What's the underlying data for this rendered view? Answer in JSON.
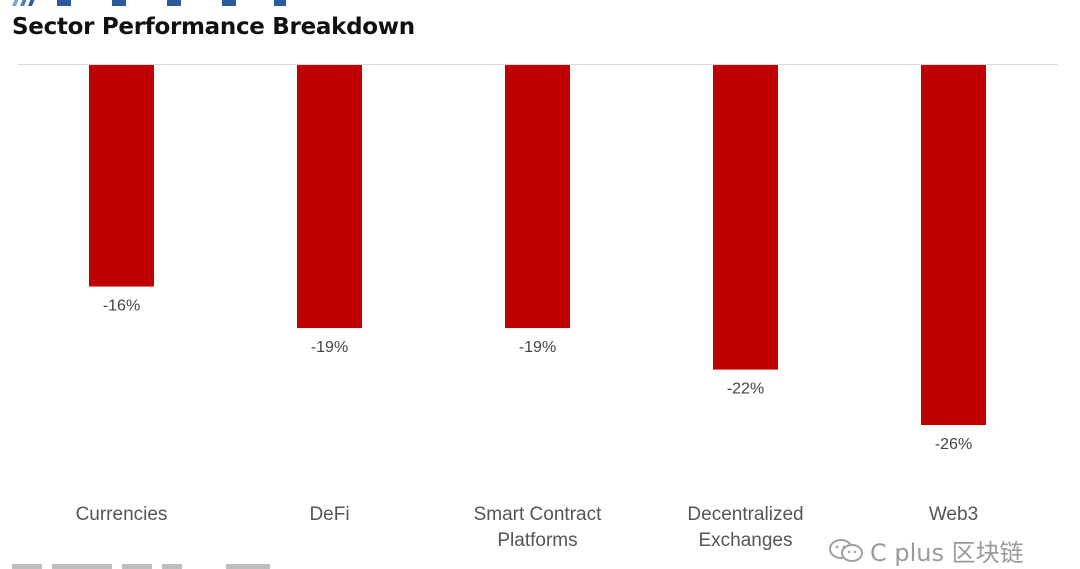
{
  "chart_data": {
    "type": "bar",
    "title": "Sector Performance Breakdown",
    "categories": [
      "Currencies",
      "DeFi",
      "Smart Contract Platforms",
      "Decentralized Exchanges",
      "Web3"
    ],
    "category_lines": [
      [
        "Currencies"
      ],
      [
        "DeFi"
      ],
      [
        "Smart Contract",
        "Platforms"
      ],
      [
        "Decentralized",
        "Exchanges"
      ],
      [
        "Web3"
      ]
    ],
    "values": [
      -16,
      -19,
      -19,
      -22,
      -26
    ],
    "value_labels": [
      "-16%",
      "-19%",
      "-19%",
      "-22%",
      "-26%"
    ],
    "bar_color": "#c00000",
    "ylim": [
      -26,
      0
    ],
    "grid": false,
    "legend": "none"
  },
  "branding": {
    "logo_color": "#2c5b9b"
  },
  "watermark": {
    "text": "C plus 区块链"
  }
}
